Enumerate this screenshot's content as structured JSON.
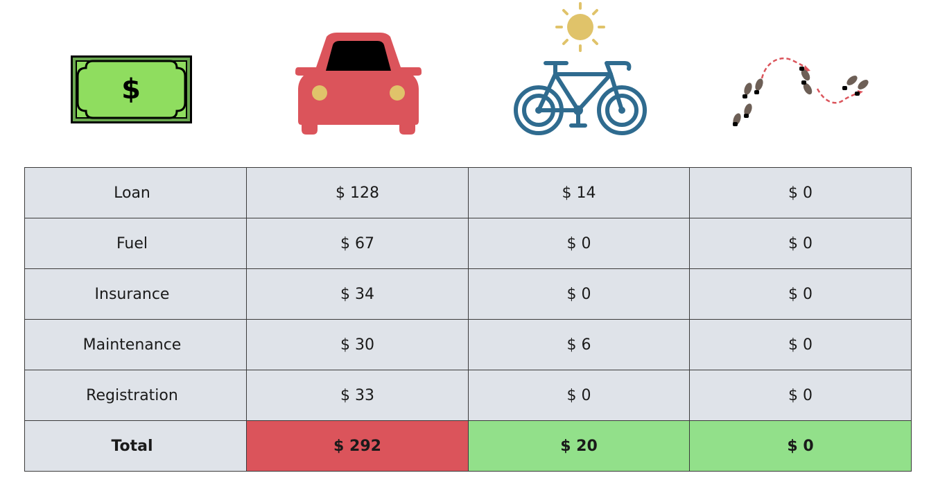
{
  "header_icons": [
    {
      "icon": "dollar-bill-icon"
    },
    {
      "icon": "car-icon"
    },
    {
      "icon": "bicycle-sun-icon"
    },
    {
      "icon": "footsteps-walking-icon"
    }
  ],
  "table": {
    "rows": [
      {
        "label": "Loan",
        "values": [
          "$ 128",
          "$ 14",
          "$ 0"
        ]
      },
      {
        "label": "Fuel",
        "values": [
          "$ 67",
          "$ 0",
          "$ 0"
        ]
      },
      {
        "label": "Insurance",
        "values": [
          "$ 34",
          "$ 0",
          "$ 0"
        ]
      },
      {
        "label": "Maintenance",
        "values": [
          "$ 30",
          "$ 6",
          "$ 0"
        ]
      },
      {
        "label": "Registration",
        "values": [
          "$ 33",
          "$ 0",
          "$ 0"
        ]
      }
    ],
    "total": {
      "label": "Total",
      "values": [
        "$ 292",
        "$ 20",
        "$ 0"
      ]
    }
  },
  "colors": {
    "cell_bg": "#dfe3e9",
    "total_high": "#db545b",
    "total_low": "#92e08a",
    "car": "#db545b",
    "bike": "#2f6b8f",
    "sun": "#e0c36a",
    "money": "#8fdd5f"
  }
}
